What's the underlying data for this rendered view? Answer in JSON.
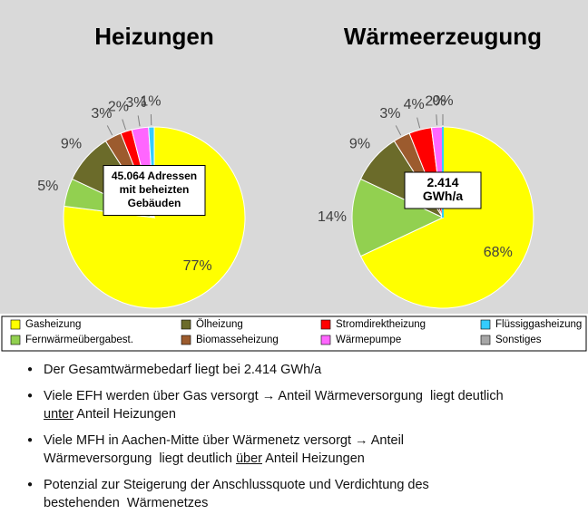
{
  "chart_data": [
    {
      "type": "pie",
      "title": "Heizungen",
      "values": [
        77,
        5,
        9,
        3,
        2,
        3,
        1
      ],
      "colors": [
        "#ffff00",
        "#92d050",
        "#6b6b2a",
        "#9c5b2e",
        "#ff0000",
        "#ff66ff",
        "#33ccff"
      ],
      "center_box": [
        "45.064 Adressen",
        "mit beheizten",
        "Gebäuden"
      ]
    },
    {
      "type": "pie",
      "title": "Wärmeerzeugung",
      "values": [
        68,
        14,
        9,
        3,
        4,
        2,
        0
      ],
      "colors": [
        "#ffff00",
        "#92d050",
        "#6b6b2a",
        "#9c5b2e",
        "#ff0000",
        "#ff66ff",
        "#33ccff"
      ],
      "center_box": [
        "2.414",
        "GWh/a"
      ]
    }
  ],
  "value_labels": [
    [
      "77%",
      "5%",
      "9%",
      "3%",
      "2%",
      "3%",
      "1%"
    ],
    [
      "68%",
      "14%",
      "9%",
      "3%",
      "4%",
      "2%",
      "0%"
    ]
  ],
  "legend": [
    {
      "name": "Gasheizung",
      "color": "#ffff00"
    },
    {
      "name": "Ölheizung",
      "color": "#6b6b2a"
    },
    {
      "name": "Stromdirektheizung",
      "color": "#ff0000"
    },
    {
      "name": "Flüssiggasheizung",
      "color": "#33ccff"
    },
    {
      "name": "Fernwärmeübergabest.",
      "color": "#92d050"
    },
    {
      "name": "Biomasseheizung",
      "color": "#9c5b2e"
    },
    {
      "name": "Wärmepumpe",
      "color": "#ff66ff"
    },
    {
      "name": "Sonstiges",
      "color": "#a6a6a6"
    }
  ],
  "bullets": [
    [
      [
        {
          "text": "Der Gesamtwärmebedarf liegt bei 2.414 GWh/a"
        }
      ]
    ],
    [
      [
        {
          "text": "Viele EFH werden über Gas versorgt → Anteil Wärmeversorgung  liegt deutlich"
        }
      ],
      [
        {
          "text": "unter",
          "underline": true
        },
        {
          "text": " Anteil Heizungen"
        }
      ]
    ],
    [
      [
        {
          "text": "Viele MFH in Aachen-Mitte über Wärmenetz versorgt → Anteil"
        }
      ],
      [
        {
          "text": "Wärmeversorgung  liegt deutlich "
        },
        {
          "text": "über",
          "underline": true
        },
        {
          "text": " Anteil Heizungen"
        }
      ]
    ],
    [
      [
        {
          "text": "Potenzial zur Steigerung der Anschlussquote und Verdichtung des"
        }
      ],
      [
        {
          "text": "bestehenden  Wärmenetzes"
        }
      ]
    ]
  ]
}
